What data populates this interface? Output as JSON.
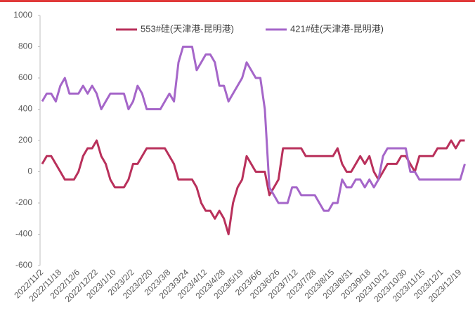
{
  "chart_data": {
    "type": "line",
    "categories": [
      "2022/11/2",
      null,
      null,
      null,
      "2022/11/18",
      null,
      null,
      null,
      "2022/12/6",
      null,
      null,
      null,
      "2022/12/22",
      null,
      null,
      null,
      "2023/1/10",
      null,
      null,
      null,
      "2023/2/2",
      null,
      null,
      null,
      "2023/2/20",
      null,
      null,
      null,
      "2023/3/8",
      null,
      null,
      null,
      "2023/3/24",
      null,
      null,
      null,
      "2023/4/12",
      null,
      null,
      null,
      "2023/4/28",
      null,
      null,
      null,
      "2023/5/19",
      null,
      null,
      null,
      "2023/6/6",
      null,
      null,
      null,
      "2023/6/26",
      null,
      null,
      null,
      "2023/7/12",
      null,
      null,
      null,
      "2023/7/28",
      null,
      null,
      null,
      "2023/8/15",
      null,
      null,
      null,
      "2023/8/31",
      null,
      null,
      null,
      "2023/9/18",
      null,
      null,
      null,
      "2023/10/12",
      null,
      null,
      null,
      "2023/10/30",
      null,
      null,
      null,
      "2023/11/15",
      null,
      null,
      null,
      "2023/12/1",
      null,
      null,
      null,
      "2023/12/19",
      null
    ],
    "series": [
      {
        "name": "553#硅(天津港-昆明港)",
        "color": "#b9305b",
        "values": [
          50,
          100,
          100,
          50,
          0,
          -50,
          -50,
          -50,
          0,
          100,
          150,
          150,
          200,
          100,
          50,
          -50,
          -100,
          -100,
          -100,
          -50,
          50,
          50,
          100,
          150,
          150,
          150,
          150,
          150,
          100,
          50,
          -50,
          -50,
          -50,
          -50,
          -100,
          -200,
          -250,
          -250,
          -300,
          -250,
          -300,
          -400,
          -200,
          -100,
          -50,
          100,
          50,
          0,
          0,
          0,
          -150,
          -100,
          -50,
          150,
          150,
          150,
          150,
          150,
          100,
          100,
          100,
          100,
          100,
          100,
          100,
          150,
          50,
          0,
          0,
          50,
          100,
          50,
          100,
          0,
          -50,
          0,
          50,
          50,
          50,
          100,
          100,
          50,
          0,
          100,
          100,
          100,
          100,
          150,
          150,
          150,
          200,
          150,
          200,
          200
        ]
      },
      {
        "name": "421#硅(天津港-昆明港)",
        "color": "#a566c9",
        "values": [
          450,
          500,
          500,
          450,
          550,
          600,
          500,
          500,
          500,
          550,
          500,
          550,
          500,
          400,
          450,
          500,
          500,
          500,
          500,
          400,
          450,
          550,
          500,
          400,
          400,
          400,
          400,
          450,
          500,
          450,
          700,
          800,
          800,
          800,
          650,
          700,
          750,
          750,
          700,
          550,
          550,
          450,
          500,
          550,
          600,
          700,
          650,
          600,
          600,
          400,
          -100,
          -150,
          -200,
          -200,
          -200,
          -100,
          -100,
          -150,
          -150,
          -150,
          -150,
          -200,
          -250,
          -250,
          -200,
          -200,
          -50,
          -100,
          -100,
          -50,
          -50,
          -100,
          -50,
          -100,
          -50,
          100,
          150,
          150,
          150,
          150,
          150,
          0,
          0,
          -50,
          -50,
          -50,
          -50,
          -50,
          -50,
          -50,
          -50,
          -50,
          -50,
          50
        ]
      }
    ],
    "ylim": [
      -600,
      1000
    ],
    "yticks": [
      -600,
      -400,
      -200,
      0,
      200,
      400,
      600,
      800,
      1000
    ],
    "legend": "top",
    "grid": false
  }
}
